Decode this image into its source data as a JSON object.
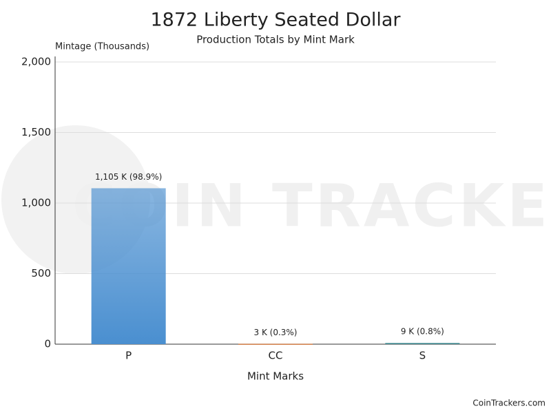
{
  "chart_data": {
    "type": "bar",
    "title": "1872 Liberty Seated Dollar",
    "subtitle": "Production Totals by Mint Mark",
    "y_label": "Mintage (Thousands)",
    "x_label": "Mint Marks",
    "categories": [
      "P",
      "CC",
      "S"
    ],
    "values": [
      1105,
      3,
      9
    ],
    "value_labels": [
      "1,105 K (98.9%)",
      "3 K (0.3%)",
      "9 K (0.8%)"
    ],
    "colors": [
      "#4a8fd0",
      "#e07b39",
      "#2f7f86"
    ],
    "ylim": [
      0,
      2000
    ],
    "yticks": [
      0,
      500,
      {
        "value": 1000,
        "label": "1,000"
      },
      {
        "value": 1500,
        "label": "1,500"
      },
      {
        "value": 2000,
        "label": "2,000"
      }
    ],
    "grid": true,
    "watermark": "COIN TRACKERS",
    "credit": "CoinTrackers.com"
  }
}
